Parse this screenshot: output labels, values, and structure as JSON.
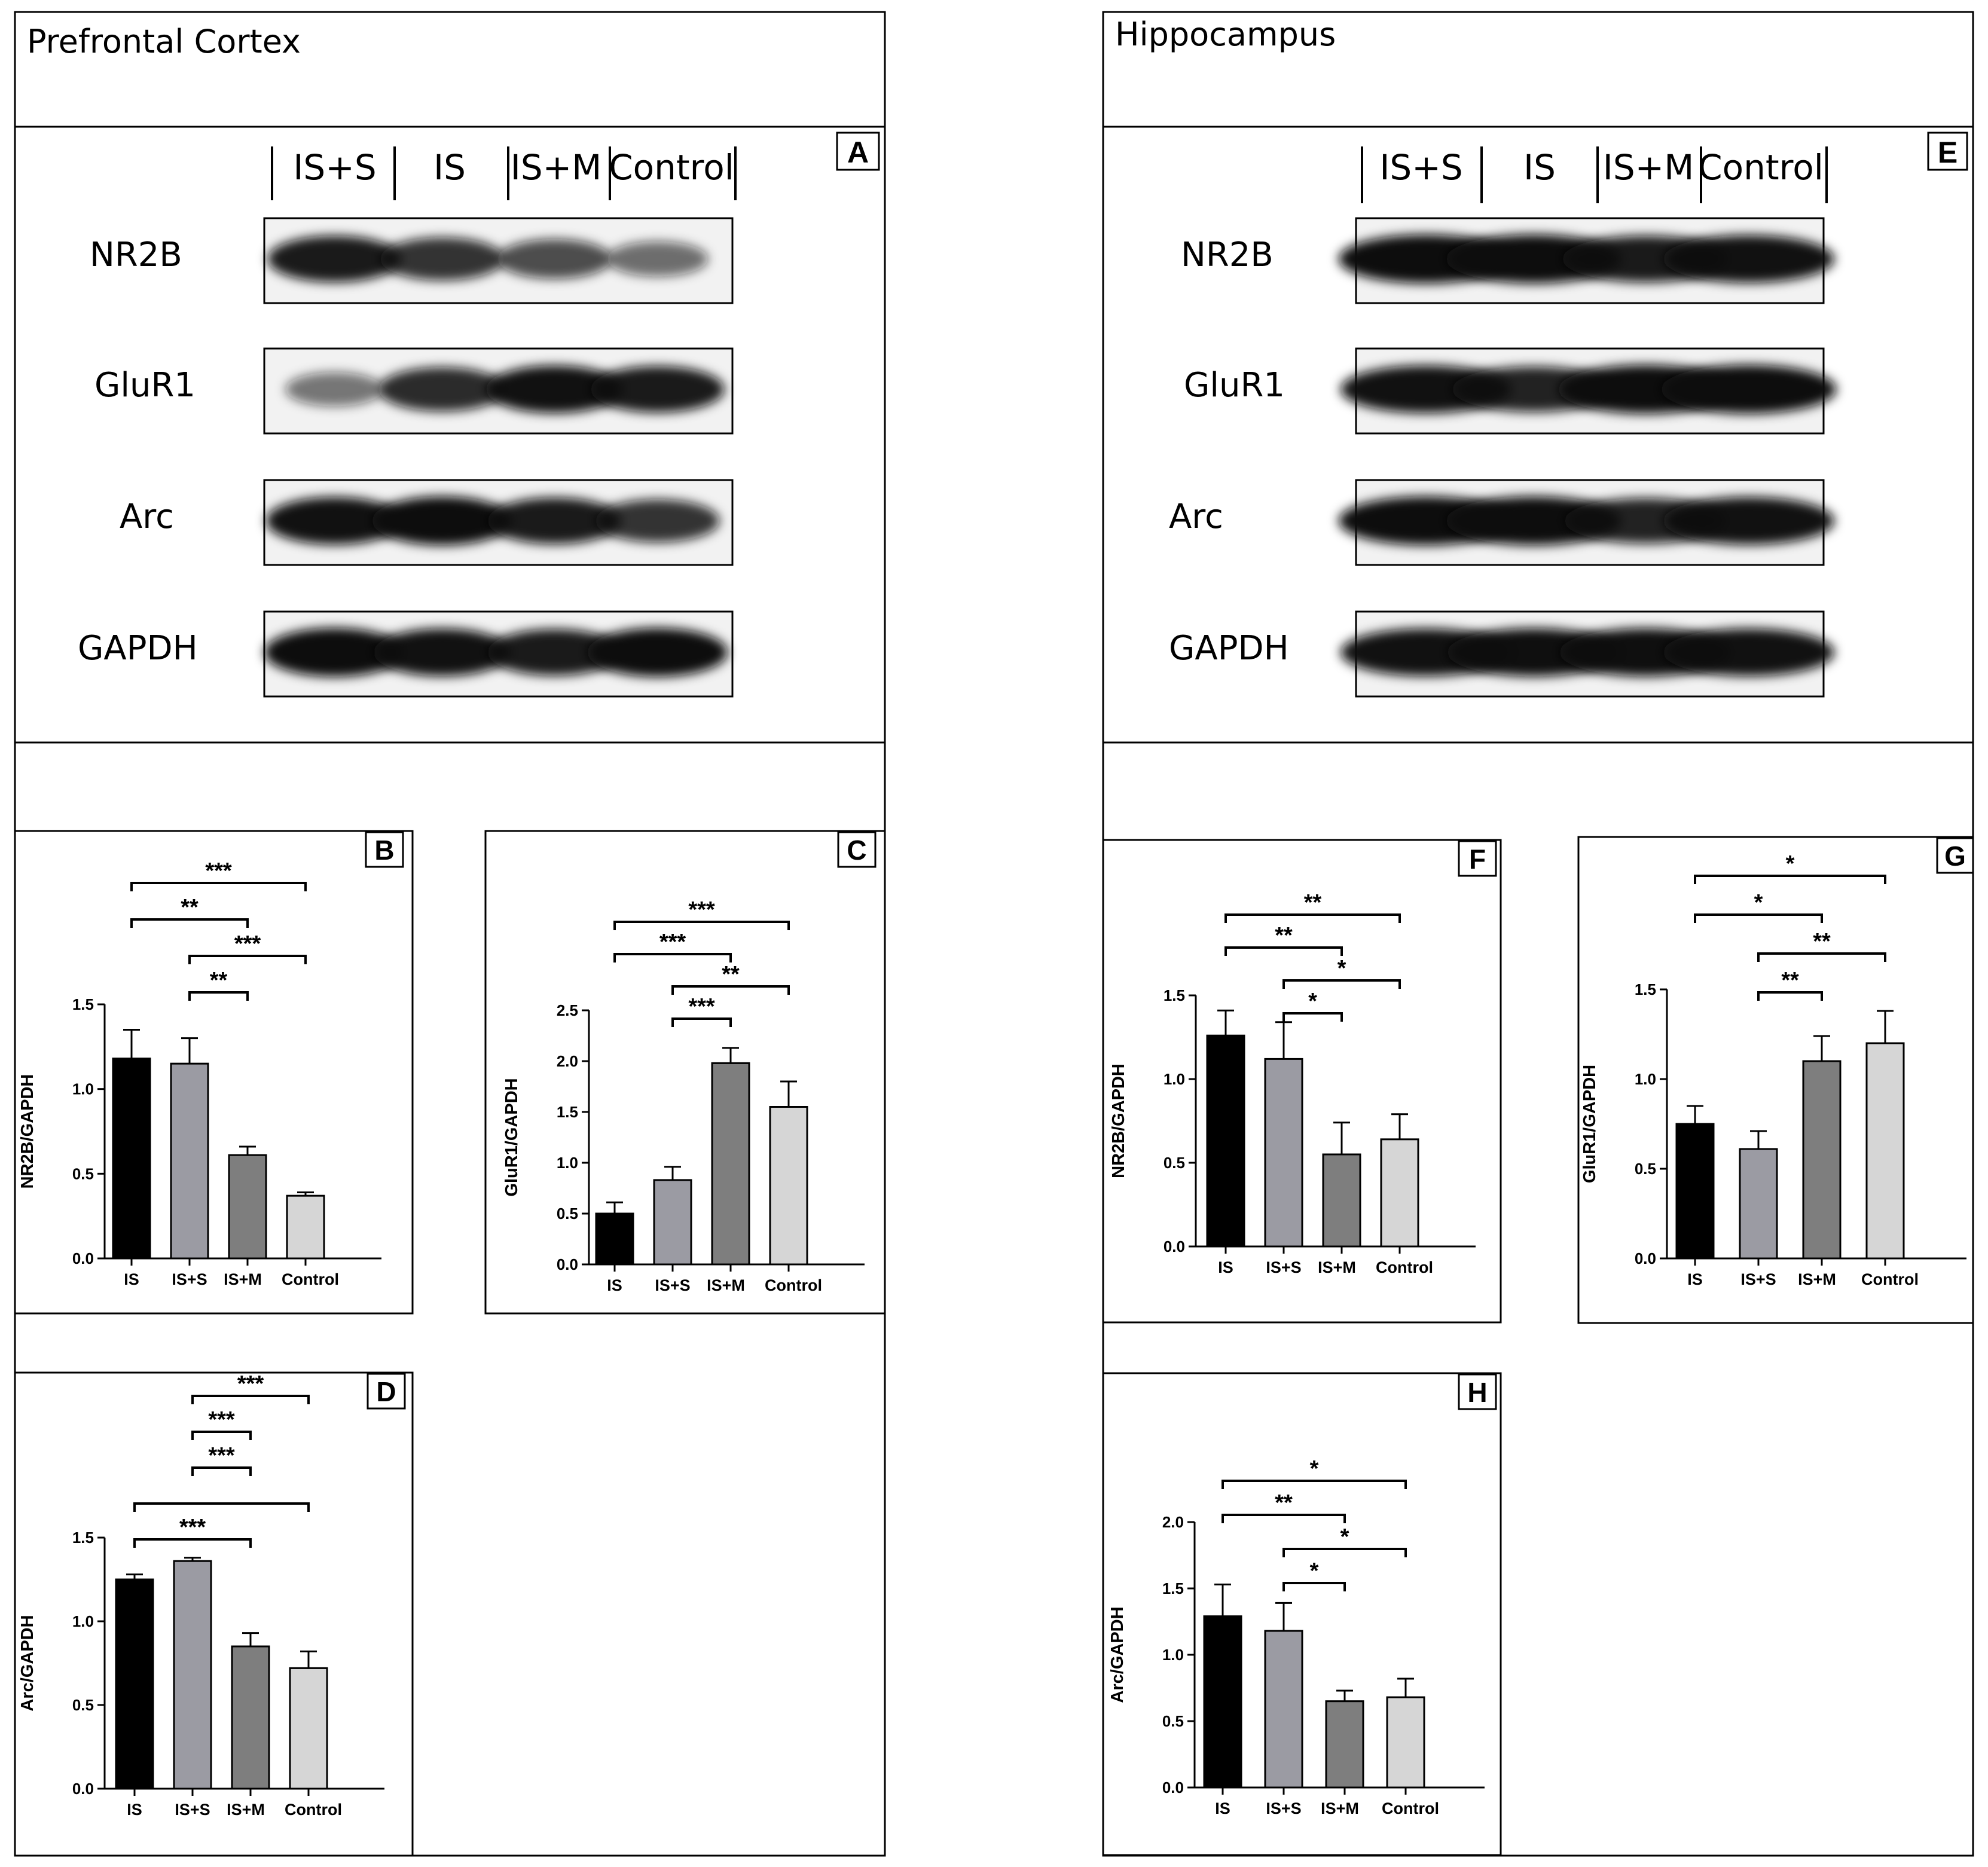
{
  "regions": {
    "left_title": "Prefrontal Cortex",
    "right_title": "Hippocampus"
  },
  "colors": {
    "IS": "#000000",
    "IS+S": "#9b9ba3",
    "IS+M": "#7e7e7e",
    "Control": "#d6d6d6",
    "ink": "#000000",
    "band": "#111111"
  },
  "blots": [
    {
      "panel": "A",
      "lanes": [
        "IS+S",
        "IS",
        "IS+M",
        "Control"
      ],
      "proteins": [
        "NR2B",
        "GluR1",
        "Arc",
        "GAPDH"
      ],
      "intensity": [
        [
          0.85,
          0.7,
          0.55,
          0.35
        ],
        [
          0.3,
          0.75,
          0.9,
          0.85
        ],
        [
          0.9,
          0.95,
          0.85,
          0.7
        ],
        [
          0.95,
          0.9,
          0.85,
          0.95
        ]
      ]
    },
    {
      "panel": "E",
      "lanes": [
        "IS+S",
        "IS",
        "IS+M",
        "Control"
      ],
      "proteins": [
        "NR2B",
        "GluR1",
        "Arc",
        "GAPDH"
      ],
      "intensity": [
        [
          0.95,
          0.95,
          0.85,
          0.9
        ],
        [
          0.9,
          0.8,
          0.95,
          0.95
        ],
        [
          0.95,
          0.95,
          0.8,
          0.9
        ],
        [
          0.9,
          0.92,
          0.92,
          0.9
        ]
      ]
    }
  ],
  "chart_data": [
    {
      "panel": "B",
      "type": "bar",
      "ylabel": "NR2B/GAPDH",
      "categories": [
        "IS",
        "IS+S",
        "IS+M",
        "Control"
      ],
      "values": [
        1.18,
        1.15,
        0.61,
        0.37
      ],
      "errors": [
        0.17,
        0.15,
        0.05,
        0.02
      ],
      "ylim": [
        0,
        1.5
      ],
      "yticks": [
        "0.0",
        "0.5",
        "1.0",
        "1.5"
      ],
      "sig": [
        {
          "from": 0,
          "to": 3,
          "label": "***",
          "level": 3
        },
        {
          "from": 0,
          "to": 2,
          "label": "**",
          "level": 2
        },
        {
          "from": 1,
          "to": 3,
          "label": "***",
          "level": 1
        },
        {
          "from": 1,
          "to": 2,
          "label": "**",
          "level": 0
        }
      ]
    },
    {
      "panel": "C",
      "type": "bar",
      "ylabel": "GluR1/GAPDH",
      "categories": [
        "IS",
        "IS+S",
        "IS+M",
        "Control"
      ],
      "values": [
        0.5,
        0.83,
        1.98,
        1.55
      ],
      "errors": [
        0.11,
        0.13,
        0.15,
        0.25
      ],
      "ylim": [
        0,
        2.5
      ],
      "yticks": [
        "0.0",
        "0.5",
        "1.0",
        "1.5",
        "2.0",
        "2.5"
      ],
      "sig": [
        {
          "from": 0,
          "to": 3,
          "label": "***",
          "level": 3
        },
        {
          "from": 0,
          "to": 2,
          "label": "***",
          "level": 2
        },
        {
          "from": 1,
          "to": 3,
          "label": "**",
          "level": 1
        },
        {
          "from": 1,
          "to": 2,
          "label": "***",
          "level": 0
        }
      ]
    },
    {
      "panel": "D",
      "type": "bar",
      "ylabel": "Arc/GAPDH",
      "categories": [
        "IS",
        "IS+S",
        "IS+M",
        "Control"
      ],
      "values": [
        1.25,
        1.36,
        0.85,
        0.72
      ],
      "errors": [
        0.03,
        0.02,
        0.08,
        0.1
      ],
      "ylim": [
        0,
        1.5
      ],
      "yticks": [
        "0.0",
        "0.5",
        "1.0",
        "1.5"
      ],
      "sig": [
        {
          "from": 1,
          "to": 3,
          "label": "***",
          "level": 4
        },
        {
          "from": 1,
          "to": 2,
          "label": "***",
          "level": 3
        },
        {
          "from": 1,
          "to": 2,
          "label": "***",
          "level": 2
        },
        {
          "from": 0,
          "to": 3,
          "label": "",
          "level": 1
        },
        {
          "from": 0,
          "to": 2,
          "label": "***",
          "level": 0
        }
      ]
    },
    {
      "panel": "F",
      "type": "bar",
      "ylabel": "NR2B/GAPDH",
      "categories": [
        "IS",
        "IS+S",
        "IS+M",
        "Control"
      ],
      "values": [
        1.26,
        1.12,
        0.55,
        0.64
      ],
      "errors": [
        0.15,
        0.22,
        0.19,
        0.15
      ],
      "ylim": [
        0,
        1.5
      ],
      "yticks": [
        "0.0",
        "0.5",
        "1.0",
        "1.5"
      ],
      "sig": [
        {
          "from": 0,
          "to": 3,
          "label": "**",
          "level": 3
        },
        {
          "from": 0,
          "to": 2,
          "label": "**",
          "level": 2
        },
        {
          "from": 1,
          "to": 3,
          "label": "*",
          "level": 1
        },
        {
          "from": 1,
          "to": 2,
          "label": "*",
          "level": 0
        }
      ]
    },
    {
      "panel": "G",
      "type": "bar",
      "ylabel": "GluR1/GAPDH",
      "categories": [
        "IS",
        "IS+S",
        "IS+M",
        "Control"
      ],
      "values": [
        0.75,
        0.61,
        1.1,
        1.2
      ],
      "errors": [
        0.1,
        0.1,
        0.14,
        0.18
      ],
      "ylim": [
        0,
        1.5
      ],
      "yticks": [
        "0.0",
        "0.5",
        "1.0",
        "1.5"
      ],
      "sig": [
        {
          "from": 0,
          "to": 3,
          "label": "*",
          "level": 3
        },
        {
          "from": 0,
          "to": 2,
          "label": "*",
          "level": 2
        },
        {
          "from": 1,
          "to": 3,
          "label": "**",
          "level": 1
        },
        {
          "from": 1,
          "to": 2,
          "label": "**",
          "level": 0
        }
      ]
    },
    {
      "panel": "H",
      "type": "bar",
      "ylabel": "Arc/GAPDH",
      "categories": [
        "IS",
        "IS+S",
        "IS+M",
        "Control"
      ],
      "values": [
        1.29,
        1.18,
        0.65,
        0.68
      ],
      "errors": [
        0.24,
        0.21,
        0.08,
        0.14
      ],
      "ylim": [
        0,
        2.0
      ],
      "yticks": [
        "0.0",
        "0.5",
        "1.0",
        "1.5",
        "2.0"
      ],
      "sig": [
        {
          "from": 0,
          "to": 3,
          "label": "*",
          "level": 3
        },
        {
          "from": 0,
          "to": 2,
          "label": "**",
          "level": 2
        },
        {
          "from": 1,
          "to": 3,
          "label": "*",
          "level": 1
        },
        {
          "from": 1,
          "to": 2,
          "label": "*",
          "level": 0
        }
      ]
    }
  ]
}
